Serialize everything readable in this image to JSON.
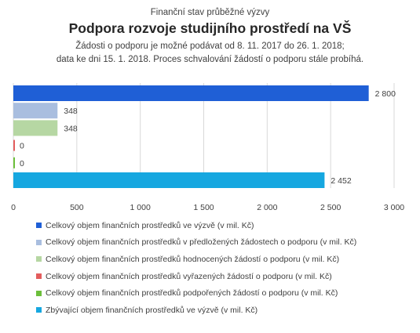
{
  "chart_data": {
    "type": "bar",
    "orientation": "horizontal",
    "pretitle": "Finanční stav průběžné výzvy",
    "title": "Podpora rozvoje studijního prostředí na VŠ",
    "subtitle": "Žádosti o podporu je možné  podávat od 8. 11. 2017 do 26. 1. 2018;\ndata ke dni 15. 1. 2018. Proces schvalování žádostí o podporu stále probíhá.",
    "xlim": [
      0,
      3000
    ],
    "xticks": [
      0,
      500,
      1000,
      1500,
      2000,
      2500,
      3000
    ],
    "xtick_labels": [
      "0",
      "500",
      "1 000",
      "1 500",
      "2 000",
      "2 500",
      "3 000"
    ],
    "grid": true,
    "legend_position": "bottom",
    "series": [
      {
        "name": "Celkový objem finančních prostředků ve výzvě (v mil. Kč)",
        "value": 2800,
        "label": "2 800",
        "color": "#1f5fd6"
      },
      {
        "name": "Celkový objem finančních prostředků v předložených žádostech o podporu (v mil. Kč)",
        "value": 348,
        "label": "348",
        "color": "#a9bedf"
      },
      {
        "name": "Celkový objem finančních prostředků hodnocených žádostí o podporu (v mil. Kč)",
        "value": 348,
        "label": "348",
        "color": "#b6d7a3"
      },
      {
        "name": "Celkový objem finančních prostředků vyřazených žádostí o podporu (v mil. Kč)",
        "value": 0,
        "label": "0",
        "color": "#e35d5d"
      },
      {
        "name": "Celkový objem finančních prostředků podpořených žádostí o podporu (v mil. Kč)",
        "value": 0,
        "label": "0",
        "color": "#6cbf3b"
      },
      {
        "name": "Zbývající objem finančních prostředků ve výzvě (v mil. Kč)",
        "value": 2452,
        "label": "2 452",
        "color": "#16a7e0"
      }
    ]
  }
}
